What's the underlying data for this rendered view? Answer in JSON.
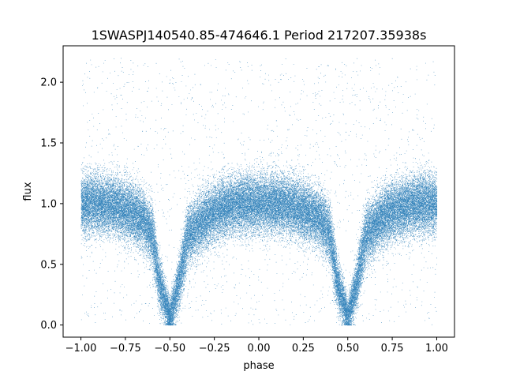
{
  "chart_data": {
    "type": "scatter",
    "title": "1SWASPJ140540.85-474646.1 Period 217207.35938s",
    "xlabel": "phase",
    "ylabel": "flux",
    "xlim": [
      -1.1,
      1.1
    ],
    "ylim": [
      -0.1,
      2.3
    ],
    "x_ticks": [
      -1.0,
      -0.75,
      -0.5,
      -0.25,
      0.0,
      0.25,
      0.5,
      0.75,
      1.0
    ],
    "x_tick_labels": [
      "−1.00",
      "−0.75",
      "−0.50",
      "−0.25",
      "0.00",
      "0.25",
      "0.50",
      "0.75",
      "1.00"
    ],
    "y_ticks": [
      0.0,
      0.5,
      1.0,
      1.5,
      2.0
    ],
    "y_tick_labels": [
      "0.0",
      "0.5",
      "1.0",
      "1.5",
      "2.0"
    ],
    "grid": false,
    "point_color": "#1f77b4",
    "series": [
      {
        "x_range": [
          -1.0,
          1.0
        ],
        "profile": {
          "phase": [
            -1.0,
            -0.9,
            -0.8,
            -0.7,
            -0.65,
            -0.6,
            -0.56,
            -0.5,
            -0.45,
            -0.4,
            -0.3,
            -0.2,
            -0.1,
            0.0,
            0.1,
            0.2,
            0.3,
            0.35,
            0.4,
            0.44,
            0.5,
            0.55,
            0.6,
            0.7,
            0.8,
            0.9,
            1.0
          ],
          "median_flux": [
            1.0,
            1.0,
            0.98,
            0.92,
            0.86,
            0.74,
            0.35,
            0.06,
            0.35,
            0.74,
            0.88,
            0.97,
            1.0,
            1.0,
            1.0,
            0.97,
            0.92,
            0.86,
            0.74,
            0.35,
            0.06,
            0.35,
            0.74,
            0.9,
            0.97,
            1.0,
            1.0
          ]
        },
        "approx_points": 60000
      }
    ]
  }
}
